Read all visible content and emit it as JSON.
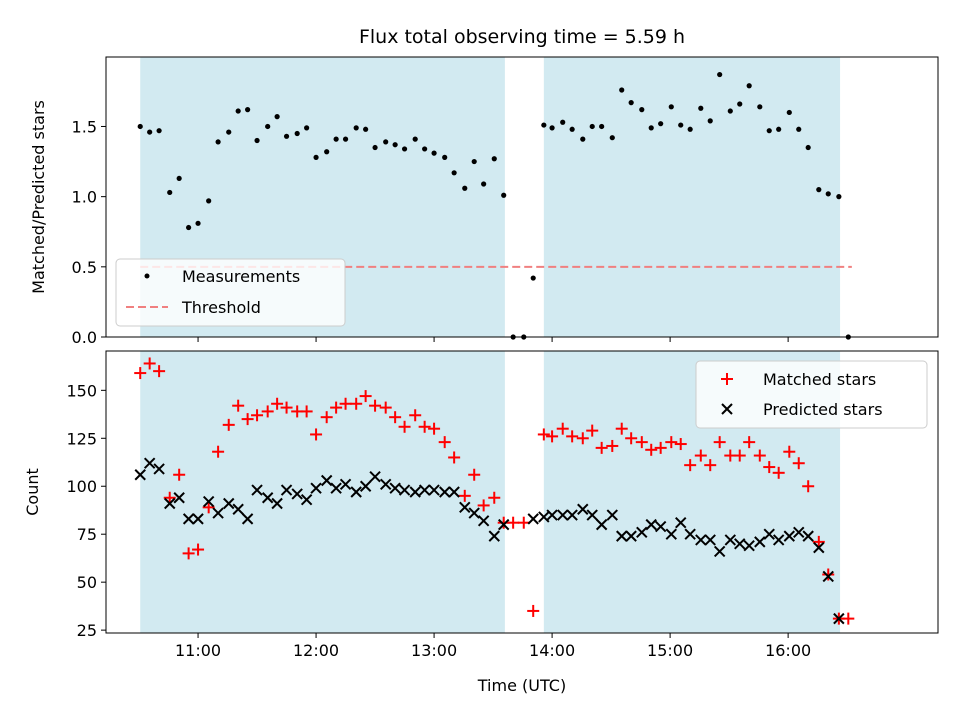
{
  "chart_data": [
    {
      "type": "scatter",
      "title": "Flux total observing time = 5.59 h",
      "xlabel": "",
      "ylabel": "Matched/Predicted stars",
      "xlim_hours": [
        10.22,
        17.27
      ],
      "ylim": [
        0.0,
        1.995
      ],
      "xticks": [
        {
          "h": 11,
          "label": "11:00"
        },
        {
          "h": 12,
          "label": "12:00"
        },
        {
          "h": 13,
          "label": "13:00"
        },
        {
          "h": 14,
          "label": "14:00"
        },
        {
          "h": 15,
          "label": "15:00"
        },
        {
          "h": 16,
          "label": "16:00"
        }
      ],
      "yticks": [
        {
          "v": 0.0,
          "label": "0.0"
        },
        {
          "v": 0.5,
          "label": "0.5"
        },
        {
          "v": 1.0,
          "label": "1.0"
        },
        {
          "v": 1.5,
          "label": "1.5"
        }
      ],
      "shaded_regions_hours": [
        [
          10.51,
          13.6
        ],
        [
          13.93,
          16.44
        ]
      ],
      "shade_color": "#add8e6",
      "legend": {
        "location": "lower-left",
        "entries": [
          "Measurements",
          "Threshold"
        ]
      },
      "threshold": {
        "name": "Threshold",
        "value": 0.5,
        "x_range_hours": [
          10.51,
          16.54
        ],
        "color": "#f08080"
      },
      "series": [
        {
          "name": "Measurements",
          "color": "#000000",
          "x_hours": [
            10.51,
            10.59,
            10.67,
            10.76,
            10.84,
            10.92,
            11.0,
            11.09,
            11.17,
            11.26,
            11.34,
            11.42,
            11.5,
            11.59,
            11.67,
            11.75,
            11.84,
            11.92,
            12.0,
            12.09,
            12.17,
            12.25,
            12.34,
            12.42,
            12.5,
            12.59,
            12.67,
            12.75,
            12.84,
            12.92,
            13.0,
            13.09,
            13.17,
            13.26,
            13.34,
            13.42,
            13.51,
            13.59,
            13.67,
            13.76,
            13.84,
            13.93,
            14.0,
            14.09,
            14.17,
            14.26,
            14.34,
            14.42,
            14.51,
            14.59,
            14.67,
            14.76,
            14.84,
            14.92,
            15.01,
            15.09,
            15.17,
            15.26,
            15.34,
            15.42,
            15.51,
            15.59,
            15.67,
            15.76,
            15.84,
            15.92,
            16.01,
            16.09,
            16.17,
            16.26,
            16.34,
            16.43,
            16.51
          ],
          "y": [
            1.5,
            1.46,
            1.47,
            1.03,
            1.13,
            0.78,
            0.81,
            0.97,
            1.39,
            1.46,
            1.61,
            1.62,
            1.4,
            1.5,
            1.57,
            1.43,
            1.45,
            1.49,
            1.28,
            1.32,
            1.41,
            1.41,
            1.49,
            1.48,
            1.35,
            1.39,
            1.37,
            1.34,
            1.41,
            1.34,
            1.31,
            1.28,
            1.17,
            1.06,
            1.25,
            1.09,
            1.27,
            1.01,
            0.0,
            0.0,
            0.42,
            1.51,
            1.49,
            1.53,
            1.48,
            1.41,
            1.5,
            1.5,
            1.42,
            1.76,
            1.67,
            1.62,
            1.49,
            1.52,
            1.64,
            1.51,
            1.48,
            1.63,
            1.54,
            1.87,
            1.61,
            1.66,
            1.79,
            1.64,
            1.47,
            1.48,
            1.6,
            1.48,
            1.35,
            1.05,
            1.02,
            1.0,
            0.0
          ]
        }
      ]
    },
    {
      "type": "scatter",
      "title": "",
      "xlabel": "Time (UTC)",
      "ylabel": "Count",
      "xlim_hours": [
        10.22,
        17.27
      ],
      "ylim": [
        23.5,
        170.5
      ],
      "xticks": [
        {
          "h": 11,
          "label": "11:00"
        },
        {
          "h": 12,
          "label": "12:00"
        },
        {
          "h": 13,
          "label": "13:00"
        },
        {
          "h": 14,
          "label": "14:00"
        },
        {
          "h": 15,
          "label": "15:00"
        },
        {
          "h": 16,
          "label": "16:00"
        }
      ],
      "yticks": [
        {
          "v": 25,
          "label": "25"
        },
        {
          "v": 50,
          "label": "50"
        },
        {
          "v": 75,
          "label": "75"
        },
        {
          "v": 100,
          "label": "100"
        },
        {
          "v": 125,
          "label": "125"
        },
        {
          "v": 150,
          "label": "150"
        }
      ],
      "shaded_regions_hours": [
        [
          10.51,
          13.6
        ],
        [
          13.93,
          16.44
        ]
      ],
      "shade_color": "#add8e6",
      "legend": {
        "location": "top-right",
        "entries": [
          "Matched stars",
          "Predicted stars"
        ]
      },
      "series": [
        {
          "name": "Matched stars",
          "marker": "plus",
          "color": "#ff0000",
          "x_hours": [
            10.51,
            10.59,
            10.67,
            10.76,
            10.84,
            10.92,
            11.0,
            11.09,
            11.17,
            11.26,
            11.34,
            11.42,
            11.5,
            11.59,
            11.67,
            11.75,
            11.84,
            11.92,
            12.0,
            12.09,
            12.17,
            12.25,
            12.34,
            12.42,
            12.5,
            12.59,
            12.67,
            12.75,
            12.84,
            12.92,
            13.0,
            13.09,
            13.17,
            13.26,
            13.34,
            13.42,
            13.51,
            13.59,
            13.67,
            13.76,
            13.84,
            13.93,
            14.0,
            14.09,
            14.17,
            14.26,
            14.34,
            14.42,
            14.51,
            14.59,
            14.67,
            14.76,
            14.84,
            14.92,
            15.01,
            15.09,
            15.17,
            15.26,
            15.34,
            15.42,
            15.51,
            15.59,
            15.67,
            15.76,
            15.84,
            15.92,
            16.01,
            16.09,
            16.17,
            16.26,
            16.34,
            16.43,
            16.51
          ],
          "y": [
            159,
            164,
            160,
            94,
            106,
            65,
            67,
            89,
            118,
            132,
            142,
            135,
            137,
            139,
            143,
            141,
            139,
            139,
            127,
            136,
            141,
            143,
            143,
            147,
            142,
            141,
            136,
            131,
            137,
            131,
            130,
            123,
            115,
            95,
            106,
            90,
            94,
            81,
            81,
            81,
            35,
            127,
            126,
            130,
            126,
            125,
            129,
            120,
            121,
            130,
            125,
            123,
            119,
            120,
            123,
            122,
            111,
            116,
            111,
            123,
            116,
            116,
            123,
            116,
            110,
            107,
            118,
            112,
            100,
            71,
            54,
            31,
            31
          ]
        },
        {
          "name": "Predicted stars",
          "marker": "x",
          "color": "#000000",
          "x_hours": [
            10.51,
            10.59,
            10.67,
            10.76,
            10.84,
            10.92,
            11.0,
            11.09,
            11.17,
            11.26,
            11.34,
            11.42,
            11.5,
            11.59,
            11.67,
            11.75,
            11.84,
            11.92,
            12.0,
            12.09,
            12.17,
            12.25,
            12.34,
            12.42,
            12.5,
            12.59,
            12.67,
            12.75,
            12.84,
            12.92,
            13.0,
            13.09,
            13.17,
            13.26,
            13.34,
            13.42,
            13.51,
            13.59,
            13.84,
            13.93,
            14.0,
            14.09,
            14.17,
            14.26,
            14.34,
            14.42,
            14.51,
            14.59,
            14.67,
            14.76,
            14.84,
            14.92,
            15.01,
            15.09,
            15.17,
            15.26,
            15.34,
            15.42,
            15.51,
            15.59,
            15.67,
            15.76,
            15.84,
            15.92,
            16.01,
            16.09,
            16.17,
            16.26,
            16.34,
            16.43
          ],
          "y": [
            106,
            112,
            109,
            91,
            94,
            83,
            83,
            92,
            86,
            91,
            88,
            83,
            98,
            94,
            91,
            98,
            96,
            93,
            99,
            103,
            99,
            101,
            97,
            100,
            105,
            101,
            99,
            98,
            97,
            98,
            98,
            97,
            97,
            89,
            86,
            82,
            74,
            80,
            83,
            84,
            85,
            85,
            85,
            88,
            85,
            80,
            85,
            74,
            74,
            76,
            80,
            79,
            75,
            81,
            75,
            72,
            72,
            66,
            72,
            70,
            69,
            71,
            75,
            72,
            74,
            76,
            74,
            68,
            53,
            31
          ]
        }
      ]
    }
  ]
}
